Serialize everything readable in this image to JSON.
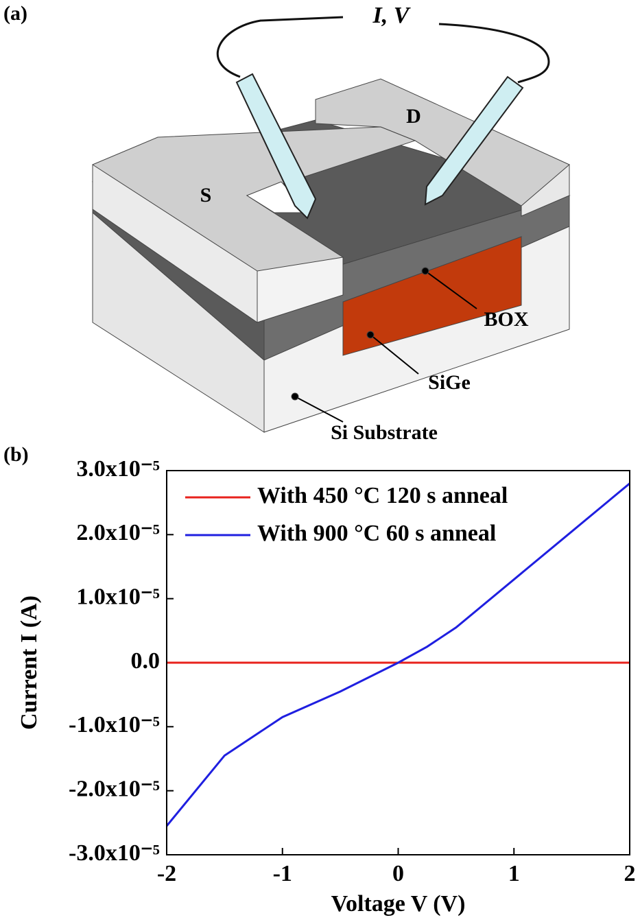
{
  "diagram": {
    "panel_label": "(a)",
    "probe_label": "I, V",
    "source_label": "S",
    "drain_label": "D",
    "box_label": "BOX",
    "sige_label": "SiGe",
    "substrate_label": "Si Substrate"
  },
  "chart_data": {
    "type": "line",
    "panel_label": "(b)",
    "x_label": "Voltage V (V)",
    "y_label": "Current I (A)",
    "x": [
      -2,
      -1.5,
      -1,
      -0.5,
      0,
      0.25,
      0.5,
      1,
      1.5,
      2
    ],
    "series": [
      {
        "name": "With 450 °C 120 s anneal",
        "color": "#e8221c",
        "values": [
          0,
          0,
          0,
          0,
          0,
          0,
          0,
          0,
          0,
          0
        ]
      },
      {
        "name": "With 900 °C 60 s anneal",
        "color": "#1f1fe0",
        "values": [
          -2.55e-05,
          -1.45e-05,
          -8.5e-06,
          -4.5e-06,
          0,
          2.5e-06,
          5.5e-06,
          1.3e-05,
          2.05e-05,
          2.8e-05
        ]
      }
    ],
    "xlim": [
      -2,
      2
    ],
    "xticks": [
      -2,
      -1,
      0,
      1,
      2
    ],
    "ylim": [
      -3e-05,
      3e-05
    ],
    "yticks": [
      {
        "value": -3e-05,
        "label": "-3.0x10⁻⁵"
      },
      {
        "value": -2e-05,
        "label": "-2.0x10⁻⁵"
      },
      {
        "value": -1e-05,
        "label": "-1.0x10⁻⁵"
      },
      {
        "value": 0,
        "label": "0.0"
      },
      {
        "value": 1e-05,
        "label": "1.0x10⁻⁵"
      },
      {
        "value": 2e-05,
        "label": "2.0x10⁻⁵"
      },
      {
        "value": 3e-05,
        "label": "3.0x10⁻⁵"
      }
    ],
    "legend": "upper left",
    "grid": false
  }
}
